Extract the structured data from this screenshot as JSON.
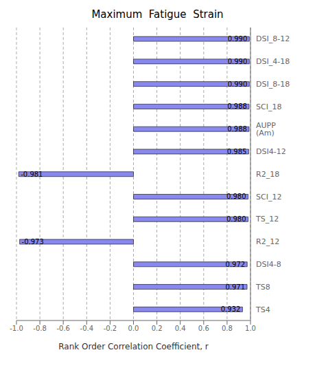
{
  "chart_data": {
    "type": "bar",
    "orientation": "horizontal",
    "title": "Maximum  Fatigue  Strain",
    "xlabel": "Rank Order Correlation Coefficient, r",
    "categories": [
      "DSI_8-12",
      "DSI_4-18",
      "DSI_8-18",
      "SCI_18",
      "AUPP (Am)",
      "DSI4-12",
      "R2_18",
      "SCI_12",
      "TS_12",
      "R2_12",
      "DSI4-8",
      "TS8",
      "TS4"
    ],
    "values": [
      0.99,
      0.99,
      0.99,
      0.988,
      0.988,
      0.985,
      -0.981,
      0.98,
      0.98,
      -0.973,
      0.972,
      0.971,
      0.932
    ],
    "value_labels": [
      "0.990",
      "0.990",
      "0.990",
      "0.988",
      "0.988",
      "0.985",
      "-0.981",
      "0.980",
      "0.980",
      "-0.973",
      "0.972",
      "0.971",
      "0.932"
    ],
    "data_labels": true,
    "color": "#8888ee",
    "xlim": [
      -1.0,
      1.0
    ],
    "xticks": [
      {
        "value": -1.0,
        "label": "-1.0"
      },
      -0.8,
      -0.6,
      -0.4,
      -0.2,
      {
        "value": 0.0,
        "label": "0.0"
      },
      0.2,
      0.4,
      0.6,
      0.8,
      {
        "value": 1.0,
        "label": "1.0"
      }
    ],
    "grid": true
  }
}
